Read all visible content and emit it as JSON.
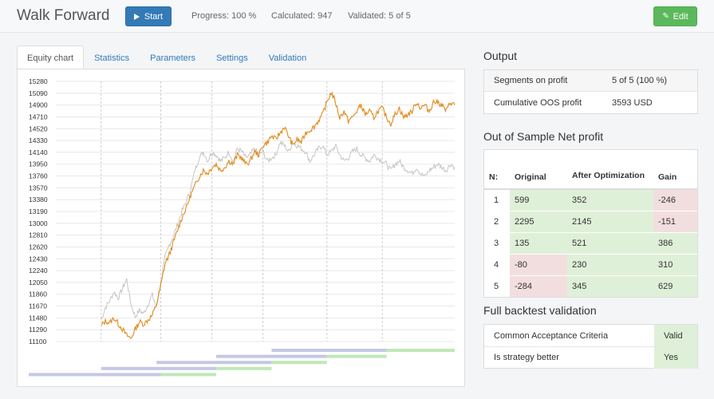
{
  "header": {
    "title": "Walk Forward",
    "start_label": "Start",
    "progress": "Progress: 100 %",
    "calculated": "Calculated: 947",
    "validated": "Validated: 5 of 5",
    "edit_label": "Edit"
  },
  "tabs": [
    {
      "label": "Equity chart",
      "active": true
    },
    {
      "label": "Statistics"
    },
    {
      "label": "Parameters"
    },
    {
      "label": "Settings"
    },
    {
      "label": "Validation"
    }
  ],
  "chart_data": {
    "type": "line",
    "y_ticks": [
      15280,
      15090,
      14900,
      14710,
      14520,
      14330,
      14140,
      13950,
      13760,
      13570,
      13380,
      13190,
      13000,
      12810,
      12620,
      12430,
      12240,
      12050,
      11860,
      11670,
      11480,
      11290,
      11100
    ],
    "ylim": [
      11100,
      15280
    ],
    "x_range": [
      0,
      100
    ],
    "vertical_gridlines_x": [
      17,
      31,
      43,
      55,
      70,
      83
    ],
    "series": [
      {
        "color": "#e08a1e",
        "x": [
          17,
          18,
          19,
          20,
          21,
          22,
          23,
          24,
          25,
          26,
          27,
          28,
          29,
          30,
          31,
          32,
          33,
          34,
          35,
          36,
          37,
          38,
          39,
          40,
          41,
          42,
          43,
          44,
          45,
          46,
          47,
          48,
          49,
          50,
          51,
          52,
          53,
          54,
          55,
          56,
          57,
          58,
          59,
          60,
          61,
          62,
          63,
          64,
          65,
          66,
          67,
          68,
          69,
          70,
          71,
          72,
          73,
          74,
          75,
          76,
          77,
          78,
          79,
          80,
          81,
          82,
          83,
          84,
          85,
          86,
          87,
          88,
          89,
          90,
          91,
          92,
          93,
          94,
          95,
          96,
          97,
          98,
          99,
          100
        ],
        "y": [
          11350,
          11430,
          11400,
          11480,
          11390,
          11300,
          11200,
          11150,
          11300,
          11420,
          11380,
          11450,
          11520,
          11700,
          12000,
          12350,
          12500,
          12700,
          12900,
          13100,
          13250,
          13450,
          13600,
          13750,
          13850,
          13800,
          13900,
          13950,
          13850,
          13900,
          14000,
          13950,
          14100,
          14050,
          13950,
          14000,
          14150,
          14100,
          14250,
          14300,
          14400,
          14350,
          14450,
          14550,
          14400,
          14250,
          14350,
          14300,
          14450,
          14500,
          14550,
          14650,
          14750,
          14950,
          15100,
          14950,
          14700,
          14800,
          14650,
          14700,
          14800,
          14900,
          14750,
          14800,
          14700,
          14800,
          14850,
          14700,
          14600,
          14750,
          14850,
          14700,
          14750,
          14800,
          14950,
          14850,
          14900,
          14800,
          14950,
          14950,
          14900,
          14800,
          14950,
          14900
        ]
      },
      {
        "color": "#c0c0c0",
        "x": [
          17,
          18,
          19,
          20,
          21,
          22,
          23,
          24,
          25,
          26,
          27,
          28,
          29,
          30,
          31,
          32,
          33,
          34,
          35,
          36,
          37,
          38,
          39,
          40,
          41,
          42,
          43,
          44,
          45,
          46,
          47,
          48,
          49,
          50,
          51,
          52,
          53,
          54,
          55,
          56,
          57,
          58,
          59,
          60,
          61,
          62,
          63,
          64,
          65,
          66,
          67,
          68,
          69,
          70,
          71,
          72,
          73,
          74,
          75,
          76,
          77,
          78,
          79,
          80,
          81,
          82,
          83,
          84,
          85,
          86,
          87,
          88,
          89,
          90,
          91,
          92,
          93,
          94,
          95,
          96,
          97,
          98,
          99,
          100
        ],
        "y": [
          11450,
          11650,
          11750,
          11900,
          11800,
          11950,
          12100,
          11700,
          11500,
          11600,
          11550,
          11700,
          11850,
          11650,
          12050,
          12450,
          12650,
          12800,
          13000,
          13200,
          13350,
          13550,
          13850,
          14050,
          14150,
          14000,
          14150,
          14100,
          14000,
          14050,
          14150,
          14000,
          14200,
          14150,
          14050,
          14100,
          14200,
          14100,
          14150,
          14000,
          14050,
          14100,
          14300,
          14250,
          14150,
          14300,
          14250,
          14200,
          14150,
          14000,
          14100,
          14200,
          14250,
          14100,
          14150,
          14250,
          14100,
          14000,
          14050,
          14150,
          14200,
          14100,
          14050,
          14000,
          14100,
          14050,
          14000,
          13950,
          13850,
          13950,
          14000,
          13900,
          13850,
          13800,
          13900,
          13800,
          13750,
          13850,
          13900,
          13950,
          13900,
          13850,
          13950,
          13900
        ]
      }
    ],
    "segments": [
      {
        "is_start": 57,
        "is_end": 84,
        "oos_end": 100
      },
      {
        "is_start": 44,
        "is_end": 70,
        "oos_end": 84
      },
      {
        "is_start": 30,
        "is_end": 57,
        "oos_end": 70
      },
      {
        "is_start": 17,
        "is_end": 44,
        "oos_end": 57
      },
      {
        "is_start": 0,
        "is_end": 31,
        "oos_end": 44
      }
    ],
    "is_color": "#c5c8e4",
    "oos_color": "#bfe8b8"
  },
  "output": {
    "title": "Output",
    "rows": [
      {
        "key": "Segments on profit",
        "value": "5 of 5 (100 %)"
      },
      {
        "key": "Cumulative OOS profit",
        "value": "3593 USD"
      }
    ]
  },
  "oos": {
    "title": "Out of Sample Net profit",
    "headers": [
      "N:",
      "Original",
      "After Optimization",
      "Gain"
    ],
    "rows": [
      {
        "n": "1",
        "original": "599",
        "after": "352",
        "gain": "-246",
        "o_pos": true,
        "a_pos": true,
        "g_pos": false
      },
      {
        "n": "2",
        "original": "2295",
        "after": "2145",
        "gain": "-151",
        "o_pos": true,
        "a_pos": true,
        "g_pos": false
      },
      {
        "n": "3",
        "original": "135",
        "after": "521",
        "gain": "386",
        "o_pos": true,
        "a_pos": true,
        "g_pos": true
      },
      {
        "n": "4",
        "original": "-80",
        "after": "230",
        "gain": "310",
        "o_pos": false,
        "a_pos": true,
        "g_pos": true
      },
      {
        "n": "5",
        "original": "-284",
        "after": "345",
        "gain": "629",
        "o_pos": false,
        "a_pos": true,
        "g_pos": true
      }
    ]
  },
  "validation": {
    "title": "Full backtest validation",
    "rows": [
      {
        "key": "Common Acceptance Criteria",
        "value": "Valid"
      },
      {
        "key": "Is strategy better",
        "value": "Yes"
      }
    ]
  }
}
